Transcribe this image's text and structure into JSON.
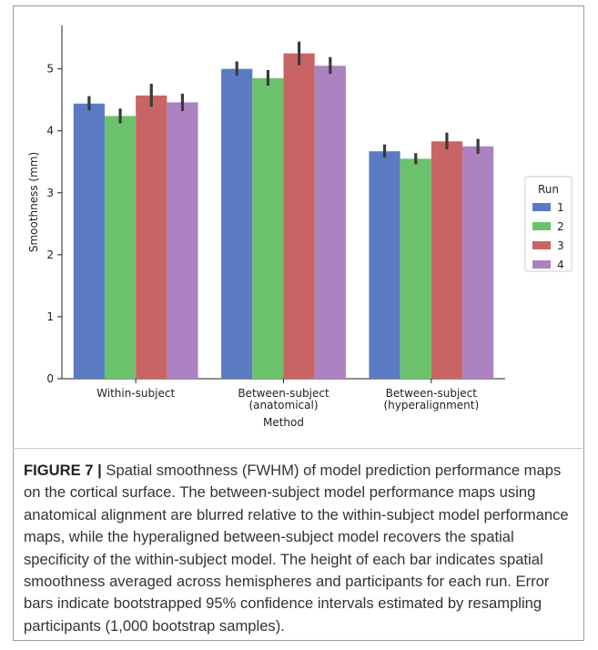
{
  "chart_data": {
    "type": "bar",
    "categories": [
      "Within-subject",
      "Between-subject\n(anatomical)",
      "Between-subject\n(hyperalignment)"
    ],
    "series": [
      {
        "name": "1",
        "values": [
          4.44,
          5.0,
          3.67
        ],
        "err_low": [
          4.33,
          4.89,
          3.57
        ],
        "err_high": [
          4.56,
          5.12,
          3.78
        ]
      },
      {
        "name": "2",
        "values": [
          4.24,
          4.85,
          3.55
        ],
        "err_low": [
          4.12,
          4.73,
          3.46
        ],
        "err_high": [
          4.36,
          4.98,
          3.64
        ]
      },
      {
        "name": "3",
        "values": [
          4.57,
          5.25,
          3.83
        ],
        "err_low": [
          4.39,
          5.06,
          3.7
        ],
        "err_high": [
          4.76,
          5.44,
          3.97
        ]
      },
      {
        "name": "4",
        "values": [
          4.46,
          5.05,
          3.75
        ],
        "err_low": [
          4.32,
          4.92,
          3.63
        ],
        "err_high": [
          4.6,
          5.19,
          3.87
        ]
      }
    ],
    "colors": [
      "#5a7bc4",
      "#6cc26c",
      "#c96464",
      "#ad82c0"
    ],
    "xlabel": "Method",
    "ylabel": "Smoothness (mm)",
    "ylim": [
      0,
      5.7
    ],
    "yticks": [
      0,
      1,
      2,
      3,
      4,
      5
    ],
    "legend_title": "Run",
    "legend_position": "right",
    "grid": false
  },
  "caption": {
    "label": "FIGURE 7 |",
    "text": "Spatial smoothness (FWHM) of model prediction performance maps on the cortical surface. The between-subject model performance maps using anatomical alignment are blurred relative to the within-subject model performance maps, while the hyperaligned between-subject model recovers the spatial specificity of the within-subject model. The height of each bar indicates spatial smoothness averaged across hemispheres and participants for each run. Error bars indicate bootstrapped 95% confidence intervals estimated by resampling participants (1,000 bootstrap samples)."
  }
}
